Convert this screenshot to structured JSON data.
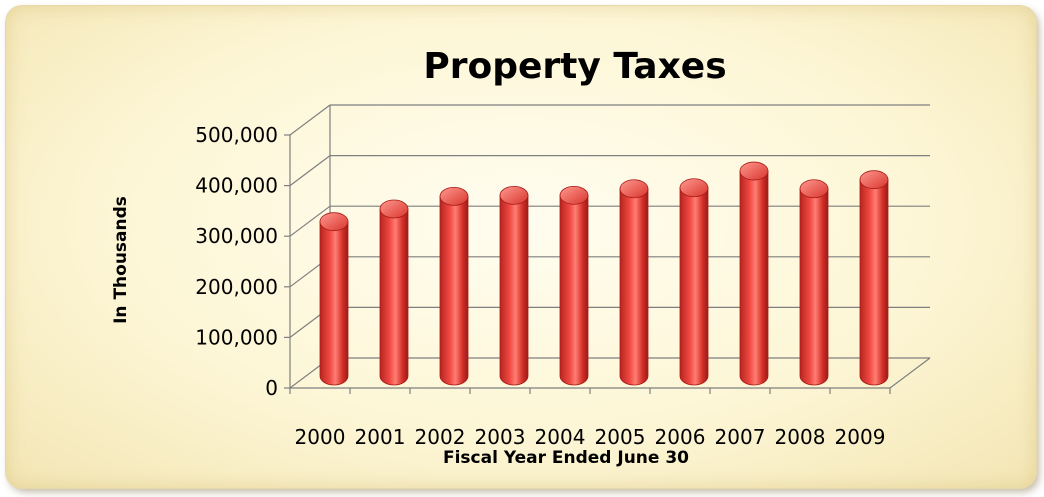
{
  "chart_data": {
    "type": "bar",
    "title": "Property Taxes",
    "xlabel": "Fiscal Year Ended June 30",
    "ylabel": "In Thousands",
    "categories": [
      "2000",
      "2001",
      "2002",
      "2003",
      "2004",
      "2005",
      "2006",
      "2007",
      "2008",
      "2009"
    ],
    "values": [
      305000,
      330000,
      355000,
      357000,
      357000,
      370000,
      372000,
      405000,
      370000,
      388000
    ],
    "ylim": [
      0,
      500000
    ],
    "yticks": [
      "0",
      "100,000",
      "200,000",
      "300,000",
      "400,000",
      "500,000"
    ],
    "grid": true,
    "legend": "none",
    "colors": {
      "bar": "#e23b35",
      "bar_dark": "#a81c18",
      "bar_light": "#ff8d84",
      "grid": "#7f7f7f"
    }
  }
}
